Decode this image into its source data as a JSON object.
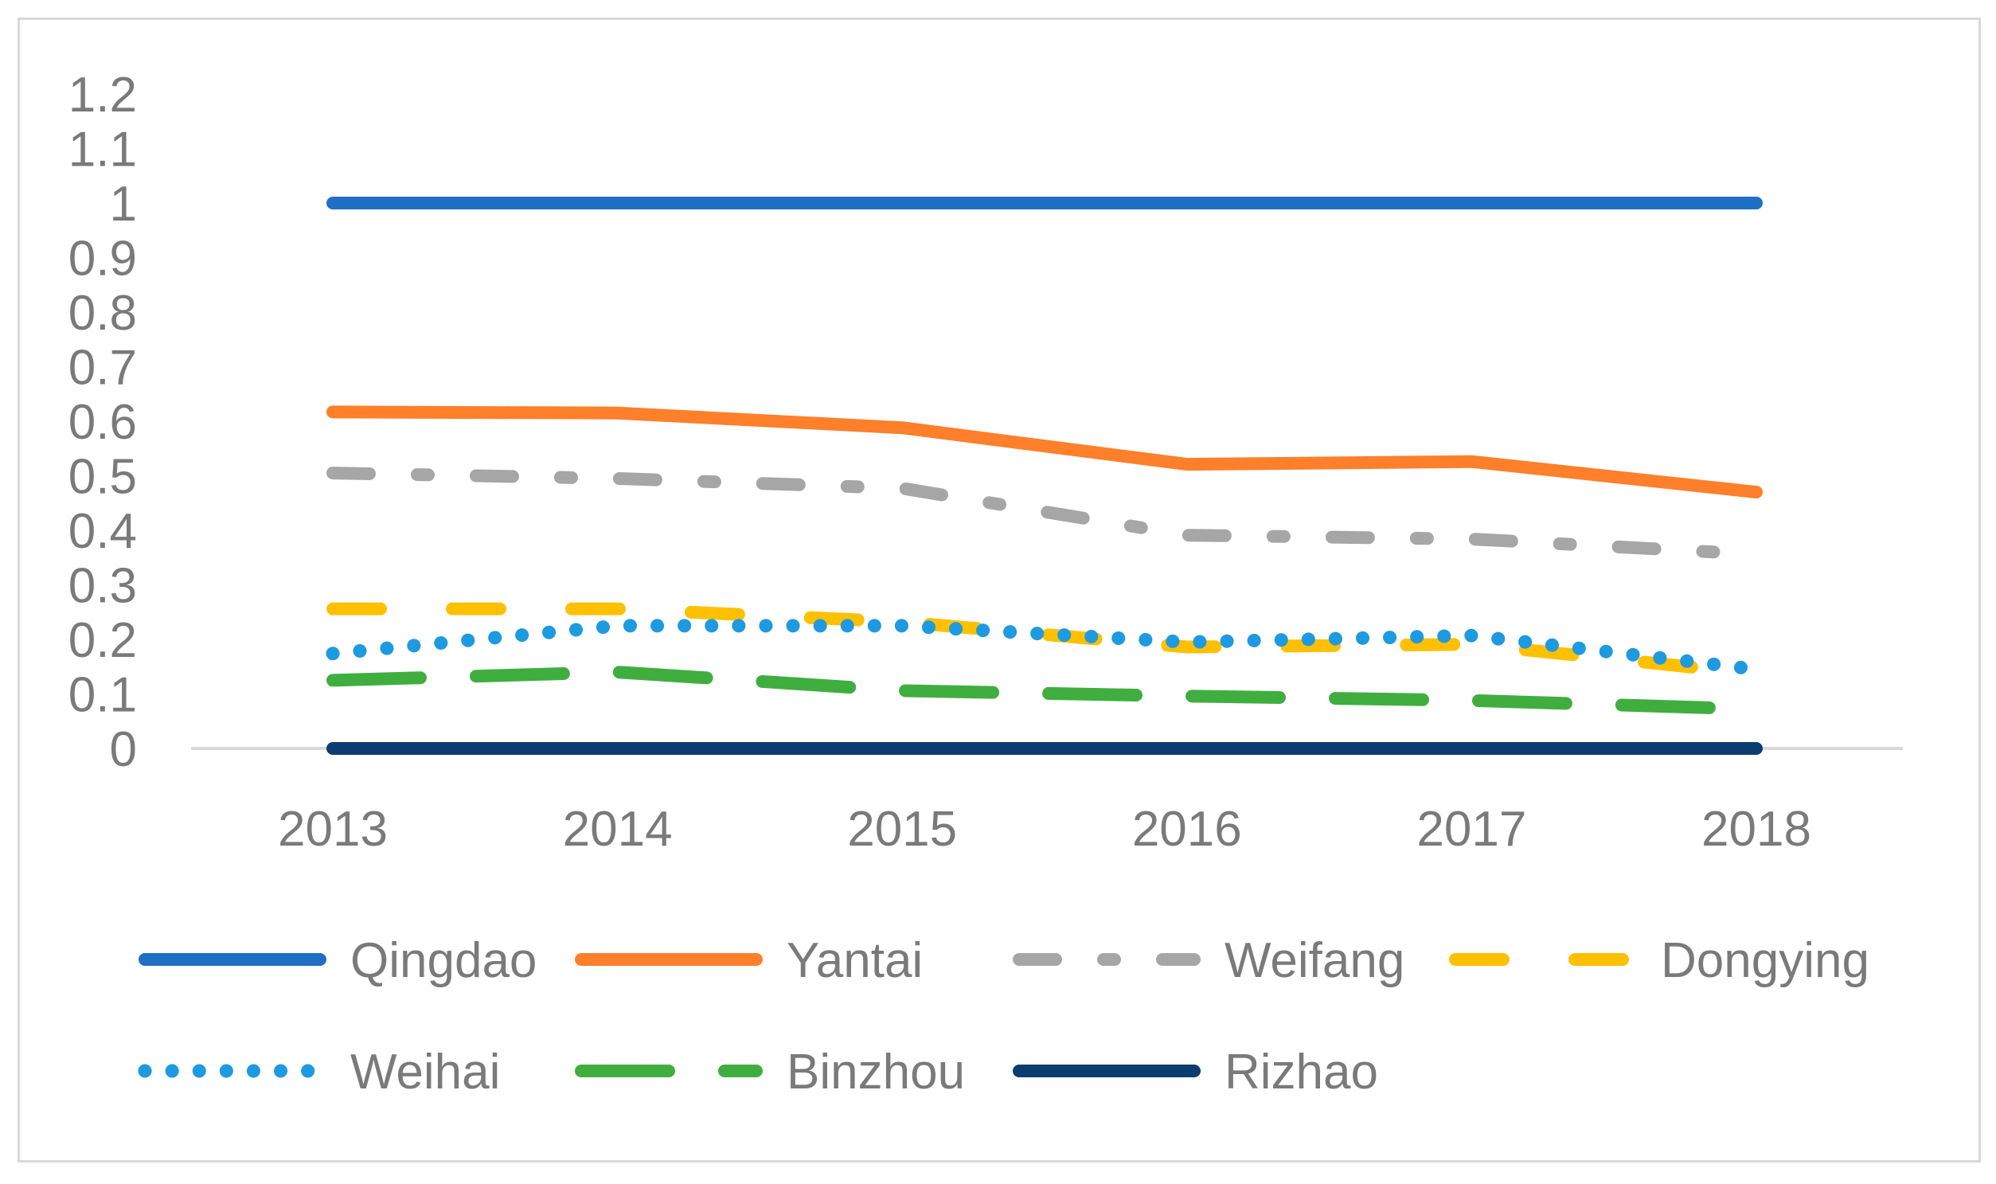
{
  "chart_data": {
    "type": "line",
    "title": "",
    "xlabel": "",
    "ylabel": "",
    "categories": [
      "2013",
      "2014",
      "2015",
      "2016",
      "2017",
      "2018"
    ],
    "y_ticks": [
      "0",
      "0.1",
      "0.2",
      "0.3",
      "0.4",
      "0.5",
      "0.6",
      "0.7",
      "0.8",
      "0.9",
      "1",
      "1.1",
      "1.2"
    ],
    "ylim": [
      0,
      1.2
    ],
    "grid": false,
    "legend_position": "bottom",
    "series": [
      {
        "name": "Qingdao",
        "values": [
          1.0,
          1.0,
          1.0,
          1.0,
          1.0,
          1.0
        ],
        "color": "#1f6fc5",
        "style": "solid"
      },
      {
        "name": "Yantai",
        "values": [
          0.617,
          0.615,
          0.588,
          0.521,
          0.526,
          0.47
        ],
        "color": "#ff7f2a",
        "style": "solid"
      },
      {
        "name": "Weifang",
        "values": [
          0.505,
          0.495,
          0.477,
          0.391,
          0.384,
          0.356
        ],
        "color": "#a6a6a6",
        "style": "dash-dot"
      },
      {
        "name": "Dongying",
        "values": [
          0.256,
          0.256,
          0.232,
          0.186,
          0.191,
          0.137
        ],
        "color": "#ffc000",
        "style": "dashed"
      },
      {
        "name": "Weihai",
        "values": [
          0.174,
          0.225,
          0.225,
          0.195,
          0.207,
          0.145
        ],
        "color": "#1e9ae0",
        "style": "dotted"
      },
      {
        "name": "Binzhou",
        "values": [
          0.125,
          0.14,
          0.106,
          0.096,
          0.088,
          0.072
        ],
        "color": "#3fae3f",
        "style": "long-dash"
      },
      {
        "name": "Rizhao",
        "values": [
          0.0,
          0.0,
          0.0,
          0.0,
          0.0,
          0.0
        ],
        "color": "#0b3d70",
        "style": "solid"
      }
    ]
  }
}
